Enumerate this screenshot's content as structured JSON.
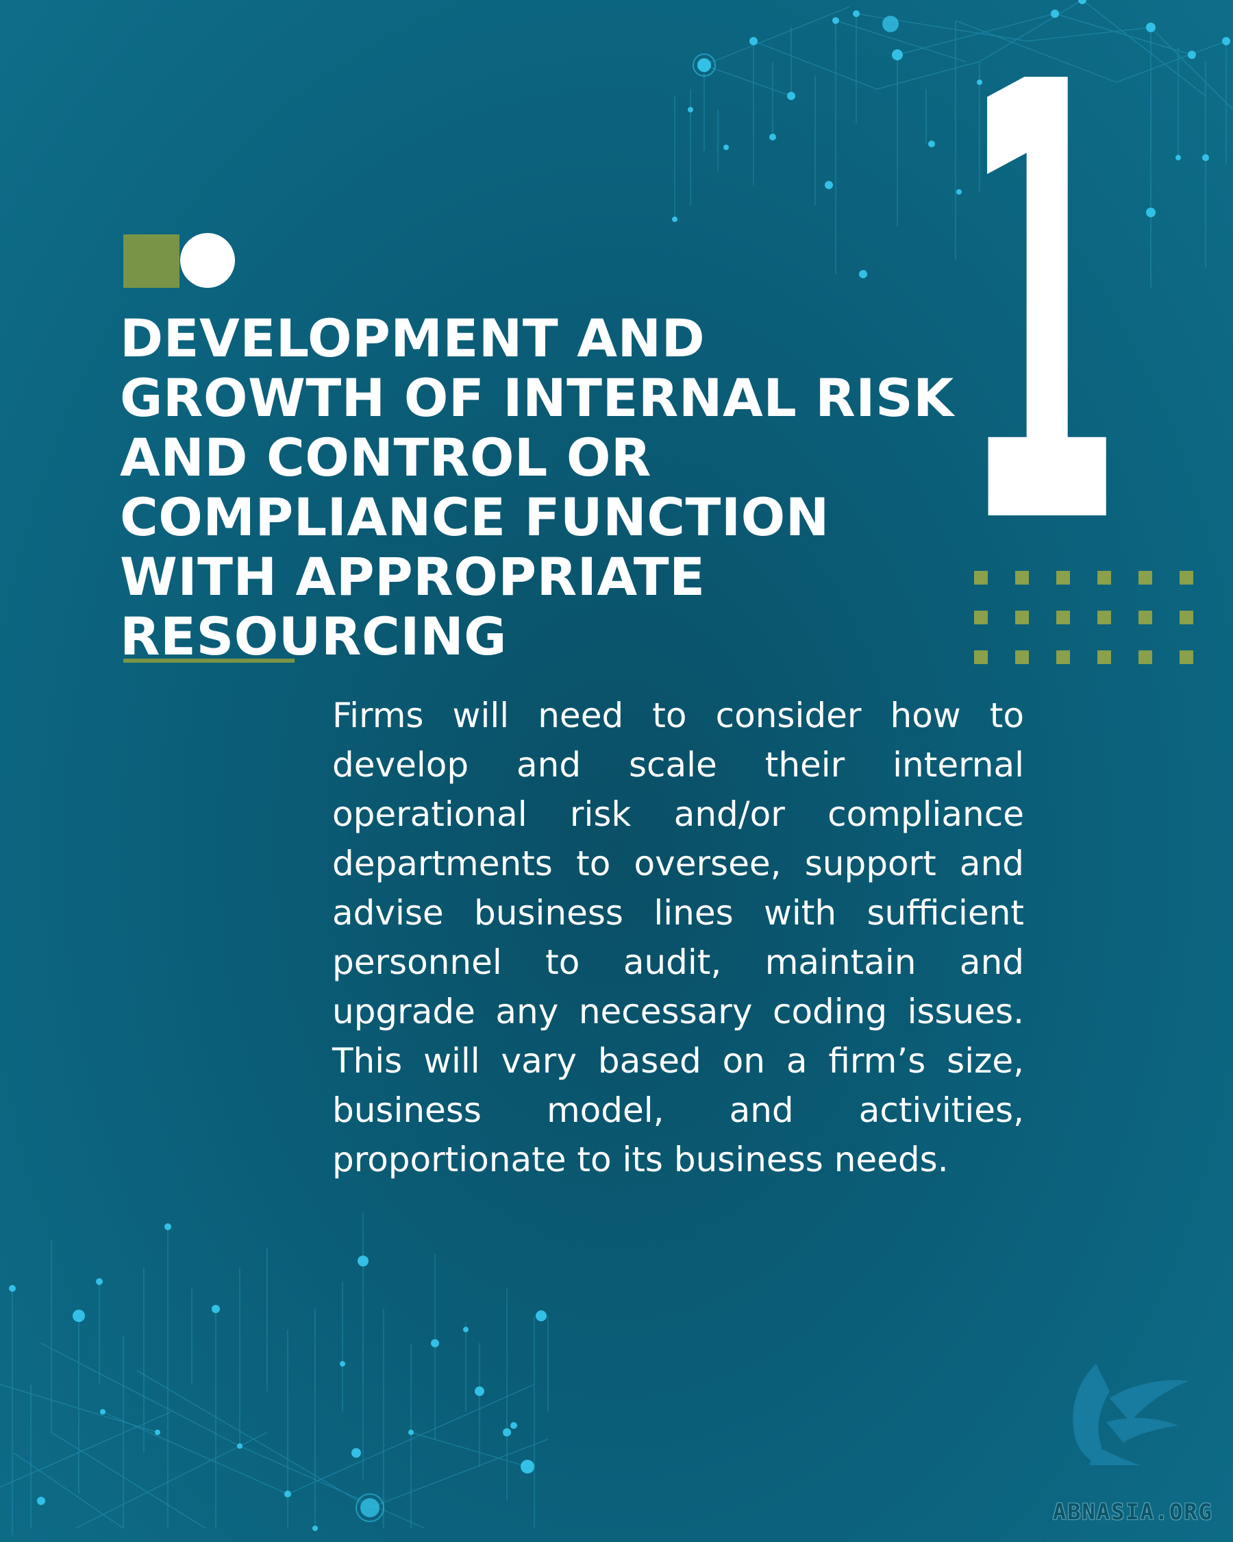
{
  "heading": "DEVELOPMENT AND GROWTH OF INTERNAL RISK AND CONTROL OR COMPLIANCE FUNCTION WITH APPROPRIATE RESOURCING",
  "number": "1",
  "body": "Firms will need to consider how to develop and scale their internal operational risk and/or compliance departments to oversee, support and advise business lines with sufficient personnel to audit, maintain and upgrade any necessary coding issues. This will vary based on a firm’s size, business model, and activities, proportionate to its business needs.",
  "brand": "ABNASIA.ORG",
  "colors": {
    "background": "#0b5d77",
    "accent_green": "#7a9447",
    "text": "#ffffff",
    "network": "#2fb4d9"
  }
}
